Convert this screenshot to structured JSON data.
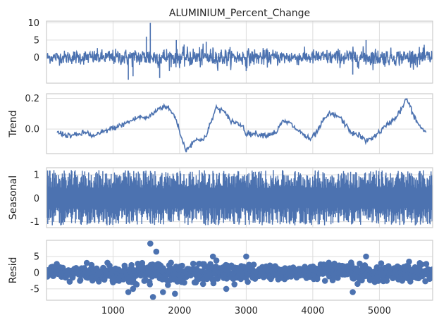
{
  "chart_data": [
    {
      "type": "line",
      "title": "ALUMINIUM_Percent_Change",
      "ylabel": "",
      "xlim": [
        1,
        5800
      ],
      "ylim": [
        -7.5,
        10.5
      ],
      "yticks": [
        0,
        5,
        10
      ],
      "xticks": [
        1000,
        2000,
        3000,
        4000,
        5000
      ],
      "grid": true,
      "color": "#4c72b0",
      "series": [
        {
          "name": "",
          "envelope_x": [
            100,
            400,
            800,
            1200,
            1600,
            2000,
            2400,
            2800,
            3200,
            3600,
            4000,
            4400,
            4800,
            5200,
            5600,
            5800
          ],
          "envelope_amplitude": [
            2.0,
            2.2,
            2.4,
            2.6,
            3.2,
            3.0,
            3.2,
            2.8,
            2.6,
            2.4,
            2.4,
            2.6,
            3.0,
            2.6,
            2.8,
            2.8
          ],
          "spikes": [
            [
              1560,
              10
            ],
            [
              1500,
              6
            ],
            [
              1950,
              5
            ],
            [
              4800,
              5
            ],
            [
              1230,
              -6.5
            ],
            [
              1300,
              -5.5
            ],
            [
              1700,
              -6
            ],
            [
              4600,
              -5
            ],
            [
              2400,
              4.5
            ],
            [
              3000,
              -4
            ]
          ]
        }
      ]
    },
    {
      "type": "line",
      "title": "",
      "ylabel": "Trend",
      "xlim": [
        1,
        5800
      ],
      "ylim": [
        -0.16,
        0.23
      ],
      "yticks": [
        0.0,
        0.2
      ],
      "ytick_labels": [
        "0.0",
        "0.2"
      ],
      "grid": true,
      "color": "#4c72b0",
      "series": [
        {
          "name": "",
          "x": [
            160,
            300,
            450,
            600,
            700,
            800,
            950,
            1100,
            1200,
            1300,
            1400,
            1500,
            1600,
            1700,
            1800,
            1900,
            1960,
            2030,
            2100,
            2200,
            2300,
            2400,
            2450,
            2550,
            2650,
            2750,
            2850,
            2950,
            3000,
            3150,
            3300,
            3450,
            3550,
            3650,
            3750,
            3850,
            3950,
            4050,
            4150,
            4250,
            4400,
            4500,
            4600,
            4700,
            4800,
            4950,
            5050,
            5150,
            5250,
            5350,
            5400,
            5450,
            5500,
            5600,
            5700
          ],
          "y": [
            -0.02,
            -0.04,
            -0.04,
            -0.02,
            -0.05,
            -0.03,
            0.0,
            0.02,
            0.04,
            0.06,
            0.08,
            0.07,
            0.1,
            0.14,
            0.15,
            0.1,
            0.05,
            -0.06,
            -0.14,
            -0.08,
            -0.07,
            -0.05,
            0.02,
            0.14,
            0.12,
            0.06,
            0.04,
            0.02,
            -0.03,
            -0.03,
            -0.04,
            -0.02,
            0.05,
            0.04,
            0.0,
            -0.03,
            -0.07,
            -0.03,
            0.05,
            0.1,
            0.08,
            0.02,
            -0.03,
            -0.04,
            -0.08,
            -0.04,
            0.0,
            0.04,
            0.08,
            0.14,
            0.2,
            0.16,
            0.1,
            0.02,
            -0.02
          ]
        }
      ]
    },
    {
      "type": "line",
      "title": "",
      "ylabel": "Seasonal",
      "xlim": [
        1,
        5800
      ],
      "ylim": [
        -1.25,
        1.3
      ],
      "yticks": [
        -1,
        0,
        1
      ],
      "grid": true,
      "color": "#4c72b0",
      "series": [
        {
          "name": "",
          "x_range": [
            1,
            5800
          ],
          "y_range": [
            -1.15,
            1.2
          ]
        }
      ]
    },
    {
      "type": "scatter",
      "title": "",
      "ylabel": "Resid",
      "xlabel": "",
      "xlim": [
        1,
        5800
      ],
      "ylim": [
        -8.5,
        10
      ],
      "yticks": [
        -5,
        0,
        5
      ],
      "xticks": [
        1000,
        2000,
        3000,
        4000,
        5000
      ],
      "grid": true,
      "color": "#4c72b0",
      "baseline": 0,
      "series": [
        {
          "name": "",
          "envelope_x": [
            100,
            400,
            800,
            1200,
            1600,
            2000,
            2400,
            2800,
            3200,
            3600,
            4000,
            4400,
            4800,
            5200,
            5600,
            5800
          ],
          "envelope_amplitude": [
            2.2,
            2.4,
            2.6,
            3.0,
            3.4,
            3.0,
            3.2,
            3.0,
            2.6,
            2.4,
            2.5,
            2.6,
            3.0,
            2.6,
            3.0,
            3.0
          ],
          "outliers": [
            [
              1560,
              9
            ],
            [
              1650,
              6.5
            ],
            [
              1230,
              -6
            ],
            [
              1600,
              -7.5
            ],
            [
              1750,
              -6
            ],
            [
              1930,
              -6.5
            ],
            [
              2500,
              5
            ],
            [
              3000,
              5
            ],
            [
              4800,
              5
            ],
            [
              4600,
              -6
            ],
            [
              2700,
              -5
            ],
            [
              1300,
              -5
            ]
          ]
        }
      ]
    }
  ]
}
